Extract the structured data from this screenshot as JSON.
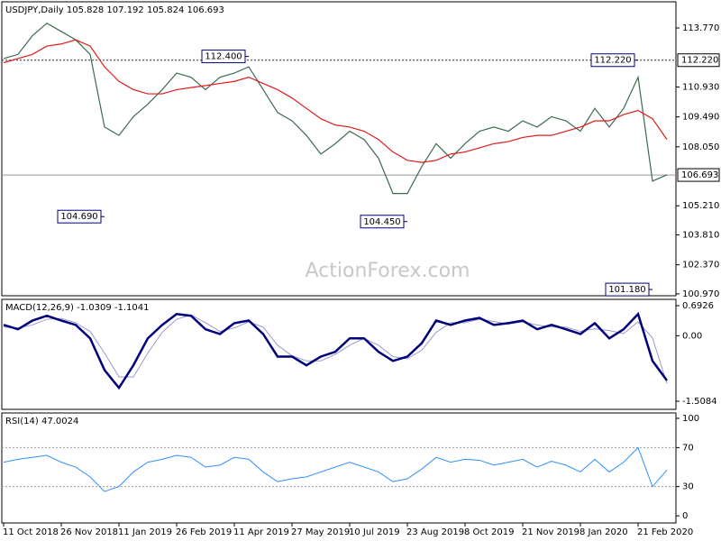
{
  "chart_data": [
    {
      "type": "line",
      "title": "USDJPY,Daily  105.828 107.192 105.824 106.693",
      "watermark": "ActionForex.com",
      "ylim": [
        100.88,
        115.03
      ],
      "yticks": [
        {
          "value": 113.77,
          "label": "113.770"
        },
        {
          "value": 110.93,
          "label": "110.930"
        },
        {
          "value": 109.49,
          "label": "109.490"
        },
        {
          "value": 108.05,
          "label": "108.050"
        },
        {
          "value": 105.21,
          "label": "105.210"
        },
        {
          "value": 103.81,
          "label": "103.810"
        },
        {
          "value": 102.37,
          "label": "102.370"
        },
        {
          "value": 100.97,
          "label": "100.970"
        }
      ],
      "levels": [
        {
          "value": 112.22,
          "label": "112.220",
          "style": "dotted"
        },
        {
          "value": 106.693,
          "label": "106.693",
          "style": "solid"
        }
      ],
      "series": [
        {
          "color": "#3d6b4f",
          "width": 1.2,
          "values": [
            112.3,
            112.5,
            113.4,
            114.0,
            113.6,
            113.2,
            112.5,
            109.0,
            108.6,
            109.5,
            110.1,
            110.8,
            111.6,
            111.4,
            110.8,
            111.4,
            111.6,
            111.9,
            110.8,
            109.7,
            109.3,
            108.6,
            107.7,
            108.2,
            108.8,
            108.4,
            107.5,
            105.8,
            105.8,
            107.1,
            108.2,
            107.5,
            108.2,
            108.8,
            109.0,
            108.8,
            109.3,
            109.0,
            109.5,
            109.3,
            108.8,
            109.9,
            109.0,
            109.9,
            111.4,
            106.4,
            106.7
          ]
        },
        {
          "color": "#e01b1b",
          "width": 1.2,
          "values": [
            112.1,
            112.3,
            112.5,
            112.9,
            113.0,
            113.2,
            112.9,
            111.9,
            111.2,
            110.8,
            110.6,
            110.6,
            110.8,
            110.9,
            111.0,
            111.1,
            111.2,
            111.4,
            111.1,
            110.8,
            110.4,
            109.9,
            109.4,
            109.1,
            109.0,
            108.8,
            108.4,
            107.8,
            107.4,
            107.3,
            107.4,
            107.7,
            107.8,
            108.0,
            108.2,
            108.3,
            108.5,
            108.6,
            108.6,
            108.8,
            109.0,
            109.3,
            109.3,
            109.6,
            109.8,
            109.4,
            108.4
          ]
        }
      ],
      "annotations": [
        {
          "x": 17,
          "value": 112.4,
          "label": "112.400"
        },
        {
          "x": 7,
          "value": 104.69,
          "label": "104.690"
        },
        {
          "x": 28,
          "value": 104.45,
          "label": "104.450"
        },
        {
          "x": 44,
          "value": 112.22,
          "label": "112.220"
        },
        {
          "x": 45,
          "value": 101.18,
          "label": "101.180"
        }
      ]
    },
    {
      "type": "line",
      "title": "MACD(12,26,9) -1.0309 -1.1041",
      "ylim": [
        -1.695,
        0.838
      ],
      "yticks": [
        0.6926,
        {
          "value": 0,
          "label": "0.00"
        },
        -1.5084
      ],
      "series": [
        {
          "color": "#9a9acb",
          "width": 1,
          "values": [
            0.2,
            0.18,
            0.25,
            0.38,
            0.4,
            0.3,
            0.1,
            -0.4,
            -0.95,
            -0.95,
            -0.4,
            0.08,
            0.38,
            0.48,
            0.3,
            0.1,
            0.18,
            0.32,
            0.2,
            -0.22,
            -0.46,
            -0.58,
            -0.58,
            -0.43,
            -0.22,
            -0.06,
            -0.22,
            -0.48,
            -0.53,
            -0.33,
            0.08,
            0.3,
            0.3,
            0.38,
            0.33,
            0.27,
            0.32,
            0.25,
            0.2,
            0.2,
            0.1,
            0.16,
            0.12,
            0.05,
            0.32,
            -0.05,
            -1.1
          ]
        },
        {
          "color": "#00007a",
          "width": 2.5,
          "values": [
            0.25,
            0.15,
            0.35,
            0.46,
            0.35,
            0.25,
            -0.06,
            -0.79,
            -1.2,
            -0.68,
            -0.06,
            0.25,
            0.5,
            0.46,
            0.15,
            0.04,
            0.29,
            0.35,
            0.04,
            -0.48,
            -0.48,
            -0.68,
            -0.48,
            -0.37,
            -0.06,
            -0.06,
            -0.37,
            -0.58,
            -0.48,
            -0.17,
            0.35,
            0.25,
            0.35,
            0.41,
            0.25,
            0.29,
            0.35,
            0.15,
            0.25,
            0.15,
            0.04,
            0.29,
            -0.06,
            0.15,
            0.5,
            -0.58,
            -1.03
          ]
        }
      ]
    },
    {
      "type": "line",
      "title": "RSI(14) 47.0024",
      "ylim": [
        -7.3,
        105.5
      ],
      "yticks": [
        100,
        70,
        30,
        0
      ],
      "levels": [
        70,
        30
      ],
      "categories": [
        "11 Oct 2018",
        null,
        null,
        null,
        "26 Nov 2018",
        null,
        null,
        null,
        "11 Jan 2019",
        null,
        null,
        null,
        "26 Feb 2019",
        null,
        null,
        null,
        "11 Apr 2019",
        null,
        null,
        null,
        "27 May 2019",
        null,
        null,
        null,
        "10 Jul 2019",
        null,
        null,
        null,
        "23 Aug 2019",
        null,
        null,
        null,
        "8 Oct 2019",
        null,
        null,
        null,
        "21 Nov 2019",
        null,
        null,
        null,
        "8 Jan 2020",
        null,
        null,
        null,
        "21 Feb 2020",
        null,
        null
      ],
      "series": [
        {
          "color": "#2f8fff",
          "width": 1,
          "values": [
            55,
            58,
            60,
            62,
            55,
            50,
            40,
            25,
            30,
            45,
            55,
            58,
            62,
            60,
            50,
            52,
            60,
            58,
            45,
            35,
            38,
            40,
            45,
            50,
            55,
            50,
            45,
            35,
            38,
            48,
            60,
            55,
            58,
            57,
            52,
            55,
            58,
            50,
            56,
            52,
            45,
            58,
            45,
            55,
            70,
            30,
            47
          ]
        }
      ]
    }
  ]
}
